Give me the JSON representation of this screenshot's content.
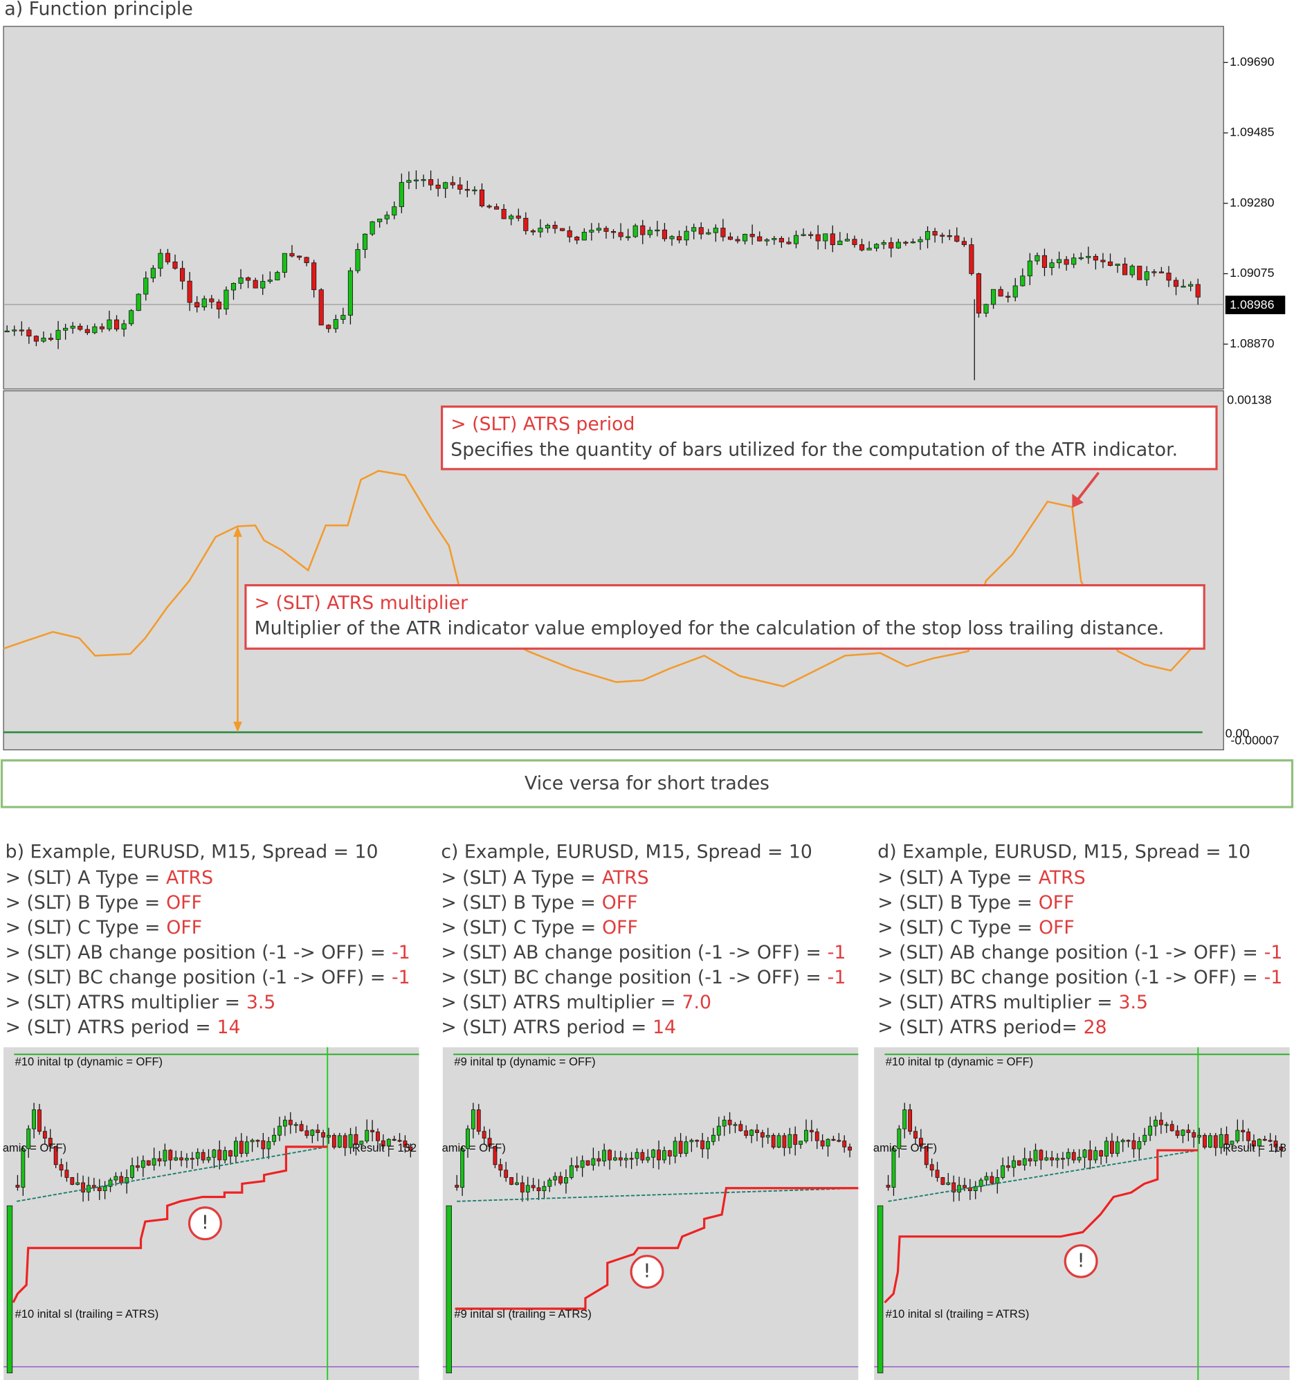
{
  "panel_a": {
    "title": "a) Function principle",
    "price_axis": [
      "1.09690",
      "1.09485",
      "1.09280",
      "1.09075",
      "1.08870"
    ],
    "current_price": "1.08986",
    "indicator_axis": {
      "top": "0.00138",
      "zero": "0.00",
      "bottom": "-0.00007"
    },
    "callouts": [
      {
        "label": "> (SLT) ATRS period",
        "text": "Specifies the quantity of bars utilized for the computation of the ATR indicator."
      },
      {
        "label": "> (SLT) ATRS multiplier",
        "text": "Multiplier of the ATR indicator value employed for the calculation of the stop loss trailing distance."
      }
    ]
  },
  "note": "Vice versa for short trades",
  "examples": [
    {
      "title": "b) Example, EURUSD, M15, Spread = 10",
      "params": [
        {
          "name": "> (SLT) A Type =",
          "value": "ATRS"
        },
        {
          "name": "> (SLT) B Type =",
          "value": "OFF"
        },
        {
          "name": "> (SLT) C Type =",
          "value": "OFF"
        },
        {
          "name": "> (SLT) AB change position (-1 -> OFF) =",
          "value": "-1"
        },
        {
          "name": "> (SLT) BC change position (-1 -> OFF) =",
          "value": "-1"
        },
        {
          "name": "> (SLT) ATRS multiplier =",
          "value": "3.5"
        },
        {
          "name": "> (SLT) ATRS period =",
          "value": "14"
        }
      ],
      "chart": {
        "tp_label": "#10 inital tp (dynamic = OFF)",
        "sl_label": "#10 inital sl (trailing = ATRS)",
        "partial_label": "amic = OFF)",
        "result": "Result = 132",
        "warning": "!"
      }
    },
    {
      "title": "c) Example, EURUSD, M15, Spread = 10",
      "params": [
        {
          "name": "> (SLT) A Type =",
          "value": "ATRS"
        },
        {
          "name": "> (SLT) B Type =",
          "value": "OFF"
        },
        {
          "name": "> (SLT) C Type =",
          "value": "OFF"
        },
        {
          "name": "> (SLT) AB change position (-1 -> OFF) =",
          "value": "-1"
        },
        {
          "name": "> (SLT) BC change position (-1 -> OFF) =",
          "value": "-1"
        },
        {
          "name": "> (SLT) ATRS multiplier =",
          "value": "7.0"
        },
        {
          "name": "> (SLT) ATRS period =",
          "value": "14"
        }
      ],
      "chart": {
        "tp_label": "#9 inital tp (dynamic = OFF)",
        "sl_label": "#9 inital sl (trailing = ATRS)",
        "partial_label": "amic = OFF)",
        "warning": "!"
      }
    },
    {
      "title": "d) Example, EURUSD, M15, Spread = 10",
      "params": [
        {
          "name": "> (SLT) A Type =",
          "value": "ATRS"
        },
        {
          "name": "> (SLT) B Type =",
          "value": "OFF"
        },
        {
          "name": "> (SLT) C Type =",
          "value": "OFF"
        },
        {
          "name": "> (SLT) AB change position (-1 -> OFF) =",
          "value": "-1"
        },
        {
          "name": "> (SLT) BC change position (-1 -> OFF) =",
          "value": "-1"
        },
        {
          "name": "> (SLT) ATRS multiplier =",
          "value": "3.5"
        },
        {
          "name": "> (SLT) ATRS period=",
          "value": "28"
        }
      ],
      "chart": {
        "tp_label": "#10 inital tp (dynamic = OFF)",
        "sl_label": "#10 inital sl (trailing = ATRS)",
        "partial_label": "amic = OFF)",
        "result": "Result = 118",
        "warning": "!"
      }
    }
  ]
}
